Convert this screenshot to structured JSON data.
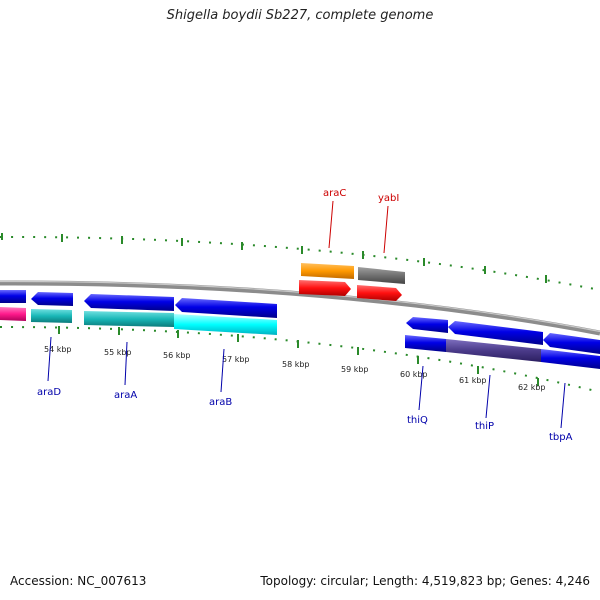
{
  "title": "Shigella boydii Sb227, complete genome",
  "footer": {
    "accession": "Accession: NC_007613",
    "summary": "Topology: circular; Length: 4,519,823 bp; Genes: 4,246"
  },
  "colors": {
    "backbone": "#8c8c8c",
    "tick": "#2a8a2a",
    "label_plus": "#cc0000",
    "label_minus": "#0000aa",
    "cds": "#0000e6",
    "rna": "#ff2020",
    "cog_orange": "#ff9900",
    "cog_gray": "#707070",
    "cog_magenta": "#ff1a8c",
    "cog_teal": "#19b7b7",
    "cog_cyan": "#00ffff",
    "cog_purple": "#4b3b8a"
  },
  "diagram": {
    "tick_labels": [
      {
        "name": "tick-54kbp",
        "text": "54 kbp"
      },
      {
        "name": "tick-55kbp",
        "text": "55 kbp"
      },
      {
        "name": "tick-56kbp",
        "text": "56 kbp"
      },
      {
        "name": "tick-57kbp",
        "text": "57 kbp"
      },
      {
        "name": "tick-58kbp",
        "text": "58 kbp"
      },
      {
        "name": "tick-59kbp",
        "text": "59 kbp"
      },
      {
        "name": "tick-60kbp",
        "text": "60 kbp"
      },
      {
        "name": "tick-61kbp",
        "text": "61 kbp"
      },
      {
        "name": "tick-62kbp",
        "text": "62 kbp"
      }
    ],
    "genes": [
      {
        "name": "gene-araC",
        "label": "araC",
        "strand": "plus"
      },
      {
        "name": "gene-yabI",
        "label": "yabI",
        "strand": "plus"
      },
      {
        "name": "gene-araD",
        "label": "araD",
        "strand": "minus"
      },
      {
        "name": "gene-araA",
        "label": "araA",
        "strand": "minus"
      },
      {
        "name": "gene-araB",
        "label": "araB",
        "strand": "minus"
      },
      {
        "name": "gene-thiQ",
        "label": "thiQ",
        "strand": "minus"
      },
      {
        "name": "gene-thiP",
        "label": "thiP",
        "strand": "minus"
      },
      {
        "name": "gene-tbpA",
        "label": "tbpA",
        "strand": "minus"
      }
    ]
  }
}
